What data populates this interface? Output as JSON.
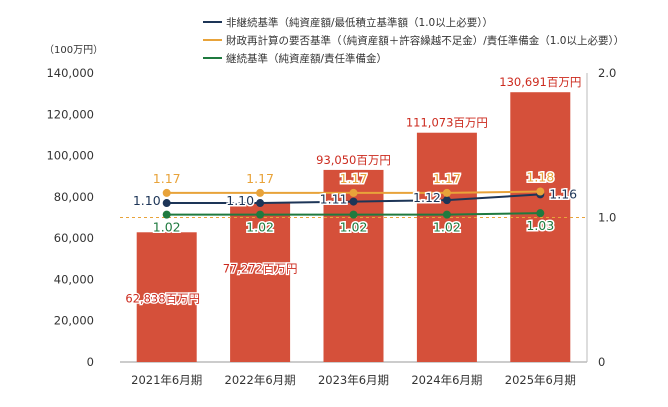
{
  "chart_data": {
    "type": "bar+line",
    "y_unit_label": "（100万円）",
    "categories": [
      "2021年6月期",
      "2022年6月期",
      "2023年6月期",
      "2024年6月期",
      "2025年6月期"
    ],
    "bars": {
      "values": [
        62838,
        77272,
        93050,
        111073,
        130691
      ],
      "labels": [
        "62,838百万円",
        "77,272百万円",
        "93,050百万円",
        "111,073百万円",
        "130,691百万円"
      ],
      "color": "#d5503a",
      "label_color": "#cc2a1e"
    },
    "left_axis": {
      "min": 0,
      "max": 140000,
      "ticks": [
        0,
        20000,
        40000,
        60000,
        80000,
        100000,
        120000,
        140000
      ],
      "tick_labels": [
        "0",
        "20,000",
        "40,000",
        "60,000",
        "80,000",
        "100,000",
        "120,000",
        "140,000"
      ]
    },
    "right_axis": {
      "min": 0,
      "max": 2.0,
      "ticks": [
        0,
        1.0,
        2.0
      ],
      "tick_labels": [
        "0",
        "1.0",
        "2.0"
      ]
    },
    "reference_line": {
      "value": 1.0,
      "color": "#e8a33a"
    },
    "series": [
      {
        "name": "非継続基準（純資産額/最低積立基準額（1.0以上必要））",
        "values": [
          1.1,
          1.1,
          1.11,
          1.12,
          1.16
        ],
        "labels": [
          "1.10",
          "1.10",
          "1.11",
          "1.12",
          "1.16"
        ],
        "color": "#1d3557",
        "label_color": "#1d3557"
      },
      {
        "name": "財政再計算の要否基準（（純資産額＋許容繰越不足金）/責任準備金（1.0以上必要））",
        "values": [
          1.17,
          1.17,
          1.17,
          1.17,
          1.18
        ],
        "labels": [
          "1.17",
          "1.17",
          "1.17",
          "1.17",
          "1.18"
        ],
        "color": "#e8a33a",
        "label_color": "#e8a33a"
      },
      {
        "name": "継続基準（純資産額/責任準備金）",
        "values": [
          1.02,
          1.02,
          1.02,
          1.02,
          1.03
        ],
        "labels": [
          "1.02",
          "1.02",
          "1.02",
          "1.02",
          "1.03"
        ],
        "color": "#1f7a3f",
        "label_color": "#1f7a3f"
      }
    ]
  }
}
